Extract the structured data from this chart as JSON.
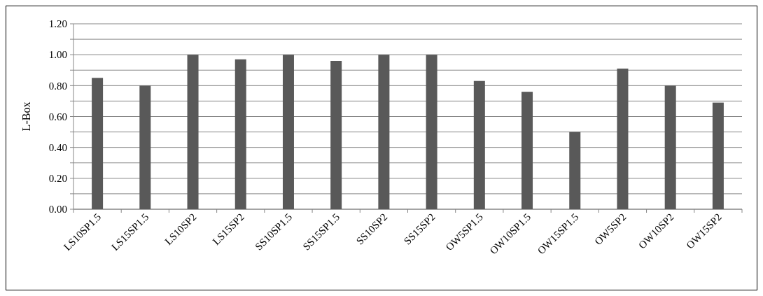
{
  "chart_data": {
    "type": "bar",
    "ylabel": "L-Box",
    "categories": [
      "LS10SP1.5",
      "LS15SP1.5",
      "LS10SP2",
      "LS15SP2",
      "SS10SP1.5",
      "SS15SP1.5",
      "SS10SP2",
      "SS15SP2",
      "OW5SP1.5",
      "OW10SP1.5",
      "OW15SP1.5",
      "OW5SP2",
      "OW10SP2",
      "OW15SP2"
    ],
    "values": [
      0.85,
      0.8,
      1.0,
      0.97,
      1.0,
      0.96,
      1.0,
      1.0,
      0.83,
      0.76,
      0.5,
      0.91,
      0.8,
      0.69
    ],
    "color": "#595959",
    "ylim": [
      0,
      1.2
    ],
    "yticks": [
      {
        "value": 0,
        "label": "0.00"
      },
      {
        "value": 0.1,
        "label": null
      },
      {
        "value": 0.2,
        "label": "0.20"
      },
      {
        "value": 0.3,
        "label": null
      },
      {
        "value": 0.4,
        "label": "0.40"
      },
      {
        "value": 0.5,
        "label": null
      },
      {
        "value": 0.6,
        "label": "0.60"
      },
      {
        "value": 0.7,
        "label": null
      },
      {
        "value": 0.8,
        "label": "0.80"
      },
      {
        "value": 0.9,
        "label": null
      },
      {
        "value": 1,
        "label": "1.00"
      },
      {
        "value": 1.1,
        "label": null
      },
      {
        "value": 1.2,
        "label": "1.20"
      }
    ],
    "grid": true
  }
}
